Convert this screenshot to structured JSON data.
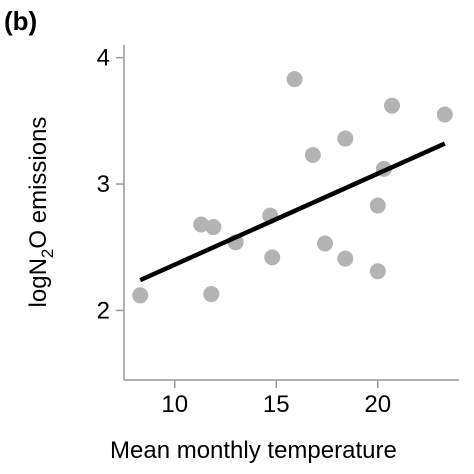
{
  "panel_label": "(b)",
  "chart_data": {
    "type": "scatter",
    "title": "",
    "xlabel": "Mean monthly temperature",
    "ylabel": {
      "prefix": "logN",
      "subscript": "2",
      "suffix": "O emissions"
    },
    "xlim": [
      7.5,
      24
    ],
    "ylim": [
      1.45,
      4.1
    ],
    "xticks": [
      10,
      15,
      20
    ],
    "yticks": [
      2,
      3,
      4
    ],
    "grid": false,
    "legend": "none",
    "point_color": "#b3b3b3",
    "line_color": "#000000",
    "points": [
      {
        "x": 8.3,
        "y": 2.12
      },
      {
        "x": 11.3,
        "y": 2.68
      },
      {
        "x": 11.9,
        "y": 2.66
      },
      {
        "x": 11.8,
        "y": 2.13
      },
      {
        "x": 13.0,
        "y": 2.54
      },
      {
        "x": 14.7,
        "y": 2.75
      },
      {
        "x": 14.8,
        "y": 2.42
      },
      {
        "x": 15.9,
        "y": 3.83
      },
      {
        "x": 16.8,
        "y": 3.23
      },
      {
        "x": 17.4,
        "y": 2.53
      },
      {
        "x": 18.4,
        "y": 3.36
      },
      {
        "x": 18.4,
        "y": 2.41
      },
      {
        "x": 20.0,
        "y": 2.83
      },
      {
        "x": 20.0,
        "y": 2.31
      },
      {
        "x": 20.3,
        "y": 3.12
      },
      {
        "x": 20.7,
        "y": 3.62
      },
      {
        "x": 23.3,
        "y": 3.55
      }
    ],
    "trend_line": {
      "x": [
        8.3,
        23.3
      ],
      "y": [
        2.24,
        3.32
      ]
    }
  }
}
